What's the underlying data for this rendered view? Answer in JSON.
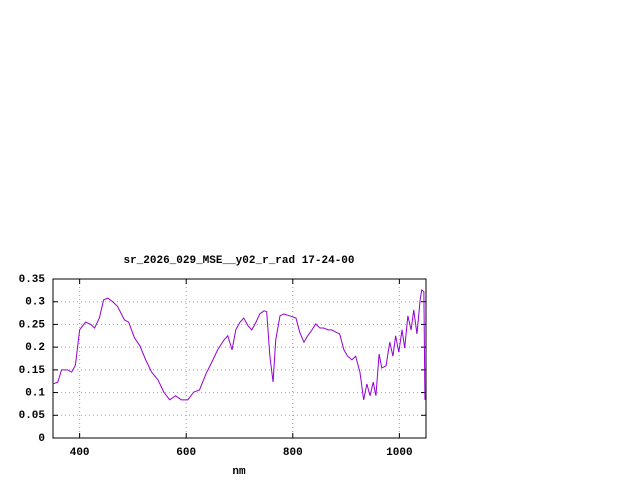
{
  "chart_data": {
    "type": "line",
    "title": "sr_2026_029_MSE__y02_r_rad 17-24-00",
    "x_label": "nm",
    "xlim": [
      350,
      1050
    ],
    "ylim": [
      0,
      0.35
    ],
    "xticks": [
      400,
      600,
      800,
      1000
    ],
    "yticks": [
      0,
      0.05,
      0.1,
      0.15,
      0.2,
      0.25,
      0.3,
      0.35
    ],
    "grid": true,
    "series": [
      {
        "color": "#9400d3",
        "x": [
          350,
          359,
          366,
          377,
          385,
          392,
          400,
          411,
          421,
          428,
          437,
          445,
          453,
          462,
          471,
          484,
          492,
          503,
          513,
          524,
          535,
          547,
          558,
          569,
          580,
          591,
          603,
          614,
          625,
          637,
          648,
          659,
          671,
          678,
          686,
          693,
          701,
          708,
          716,
          723,
          731,
          738,
          746,
          751,
          757,
          763,
          768,
          776,
          783,
          794,
          806,
          813,
          821,
          828,
          836,
          843,
          851,
          858,
          866,
          873,
          881,
          888,
          896,
          903,
          911,
          918,
          926,
          933,
          939,
          945,
          951,
          956,
          962,
          967,
          975,
          982,
          988,
          993,
          999,
          1005,
          1010,
          1016,
          1022,
          1027,
          1033,
          1039,
          1042,
          1046,
          1048
        ],
        "values": [
          0.119,
          0.123,
          0.15,
          0.15,
          0.145,
          0.16,
          0.238,
          0.255,
          0.25,
          0.242,
          0.264,
          0.304,
          0.308,
          0.3,
          0.29,
          0.26,
          0.255,
          0.22,
          0.203,
          0.172,
          0.145,
          0.128,
          0.101,
          0.084,
          0.093,
          0.084,
          0.084,
          0.101,
          0.106,
          0.141,
          0.167,
          0.194,
          0.216,
          0.225,
          0.194,
          0.238,
          0.255,
          0.264,
          0.247,
          0.238,
          0.255,
          0.273,
          0.28,
          0.278,
          0.18,
          0.123,
          0.216,
          0.269,
          0.273,
          0.269,
          0.264,
          0.233,
          0.211,
          0.225,
          0.238,
          0.251,
          0.242,
          0.242,
          0.238,
          0.238,
          0.233,
          0.229,
          0.194,
          0.18,
          0.172,
          0.18,
          0.145,
          0.084,
          0.119,
          0.093,
          0.123,
          0.093,
          0.185,
          0.154,
          0.159,
          0.211,
          0.18,
          0.225,
          0.189,
          0.238,
          0.198,
          0.269,
          0.238,
          0.282,
          0.229,
          0.304,
          0.326,
          0.322,
          0.084
        ]
      }
    ]
  }
}
